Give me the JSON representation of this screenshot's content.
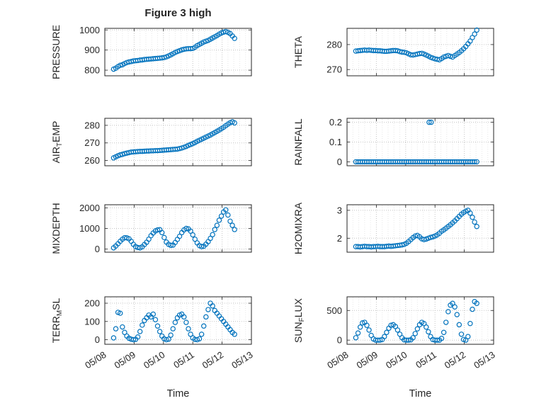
{
  "chart_data": {
    "type": "scatter",
    "title": "Figure 3 high",
    "xlabel": "Time",
    "xlim": [
      0,
      5
    ],
    "x_tick_values": [
      0,
      1,
      2,
      3,
      4,
      5
    ],
    "x_tick_labels": [
      "05/08",
      "05/09",
      "05/10",
      "05/11",
      "05/12",
      "05/13"
    ],
    "grid": "dotted",
    "marker": {
      "shape": "open-circle",
      "color": "#0072BD"
    },
    "shared_x": [
      0.3,
      0.375,
      0.45,
      0.525,
      0.6,
      0.675,
      0.75,
      0.825,
      0.9,
      0.975,
      1.05,
      1.125,
      1.2,
      1.275,
      1.35,
      1.425,
      1.5,
      1.575,
      1.65,
      1.725,
      1.8,
      1.875,
      1.95,
      2.025,
      2.1,
      2.175,
      2.25,
      2.325,
      2.4,
      2.475,
      2.55,
      2.625,
      2.7,
      2.775,
      2.85,
      2.925,
      3.0,
      3.075,
      3.15,
      3.225,
      3.3,
      3.375,
      3.45,
      3.525,
      3.6,
      3.675,
      3.75,
      3.825,
      3.9,
      3.975,
      4.05,
      4.125,
      4.2,
      4.275,
      4.35,
      4.425
    ],
    "subplots": [
      {
        "name": "pressure",
        "label": "PRESSURE",
        "row": 0,
        "col": 0,
        "ylim": [
          772,
          1008
        ],
        "yticks": [
          800,
          900,
          1000
        ],
        "y": [
          805,
          810,
          818,
          824,
          827,
          833,
          838,
          841,
          843,
          846,
          847,
          848,
          850,
          851,
          853,
          854,
          855,
          856,
          857,
          858,
          859,
          860,
          861,
          863,
          866,
          871,
          876,
          882,
          888,
          893,
          897,
          901,
          904,
          906,
          907,
          907,
          908,
          914,
          922,
          928,
          934,
          940,
          944,
          948,
          954,
          960,
          966,
          972,
          979,
          985,
          989,
          992,
          988,
          982,
          970,
          958
        ]
      },
      {
        "name": "theta",
        "label": "THETA",
        "row": 0,
        "col": 1,
        "ylim": [
          267.5,
          286.5
        ],
        "yticks": [
          270,
          280
        ],
        "y": [
          277.4,
          277.5,
          277.6,
          277.7,
          277.8,
          277.7,
          277.8,
          277.7,
          277.6,
          277.6,
          277.5,
          277.5,
          277.4,
          277.3,
          277.3,
          277.4,
          277.5,
          277.6,
          277.6,
          277.5,
          277.2,
          277.0,
          276.9,
          276.7,
          276.3,
          275.9,
          275.8,
          276.0,
          276.2,
          276.4,
          276.5,
          276.2,
          275.8,
          275.4,
          274.9,
          274.6,
          274.3,
          274.1,
          273.9,
          274.4,
          275.0,
          275.3,
          275.6,
          275.3,
          275.0,
          275.6,
          276.2,
          276.8,
          277.5,
          278.3,
          279.2,
          280.3,
          281.4,
          282.8,
          284.2,
          285.8
        ]
      },
      {
        "name": "airtemp",
        "label": "AIR_TEMP",
        "row": 1,
        "col": 0,
        "ylim": [
          257,
          284
        ],
        "yticks": [
          260,
          270,
          280
        ],
        "y": [
          261.5,
          262.1,
          262.7,
          263.2,
          263.5,
          263.9,
          264.2,
          264.5,
          264.8,
          264.9,
          265.0,
          265.1,
          265.2,
          265.2,
          265.3,
          265.4,
          265.4,
          265.5,
          265.5,
          265.6,
          265.6,
          265.7,
          265.8,
          265.9,
          266.0,
          266.1,
          266.2,
          266.3,
          266.4,
          266.5,
          266.8,
          267.1,
          267.5,
          268.0,
          268.6,
          269.1,
          269.6,
          270.2,
          270.9,
          271.5,
          272.1,
          272.7,
          273.3,
          273.9,
          274.5,
          275.2,
          275.9,
          276.6,
          277.3,
          278.1,
          278.9,
          279.8,
          280.7,
          281.5,
          282.0,
          281.4
        ]
      },
      {
        "name": "rainfall",
        "label": "RAINFALL",
        "row": 1,
        "col": 1,
        "ylim": [
          -0.02,
          0.22
        ],
        "yticks": [
          0,
          0.1,
          0.2
        ],
        "y": [
          0,
          0,
          0,
          0,
          0,
          0,
          0,
          0,
          0,
          0,
          0,
          0,
          0,
          0,
          0,
          0,
          0,
          0,
          0,
          0,
          0,
          0,
          0,
          0,
          0,
          0,
          0,
          0,
          0,
          0,
          0,
          0,
          0,
          0,
          0,
          0,
          0,
          0,
          0,
          0,
          0,
          0,
          0,
          0,
          0,
          0,
          0,
          0,
          0,
          0,
          0,
          0,
          0,
          0,
          0,
          0
        ],
        "extra_points": [
          {
            "x": 2.8,
            "y": 0.2
          },
          {
            "x": 2.87,
            "y": 0.2
          }
        ]
      },
      {
        "name": "mixdepth",
        "label": "MIXDEPTH",
        "row": 2,
        "col": 0,
        "ylim": [
          -150,
          2150
        ],
        "yticks": [
          0,
          1000,
          2000
        ],
        "y": [
          60,
          150,
          260,
          380,
          480,
          550,
          545,
          500,
          380,
          230,
          120,
          75,
          60,
          110,
          220,
          330,
          480,
          650,
          780,
          880,
          930,
          940,
          800,
          560,
          340,
          230,
          180,
          195,
          320,
          470,
          620,
          800,
          930,
          1000,
          980,
          870,
          690,
          480,
          300,
          170,
          120,
          140,
          240,
          360,
          520,
          700,
          950,
          1150,
          1400,
          1600,
          1800,
          1900,
          1650,
          1350,
          1150,
          950
        ]
      },
      {
        "name": "h2omixra",
        "label": "H2OMIXRA",
        "row": 2,
        "col": 1,
        "ylim": [
          1.5,
          3.2
        ],
        "yticks": [
          2,
          3
        ],
        "y": [
          1.7,
          1.7,
          1.69,
          1.7,
          1.71,
          1.7,
          1.7,
          1.69,
          1.7,
          1.7,
          1.71,
          1.7,
          1.7,
          1.7,
          1.71,
          1.72,
          1.71,
          1.72,
          1.73,
          1.74,
          1.75,
          1.76,
          1.78,
          1.82,
          1.88,
          1.95,
          2.02,
          2.08,
          2.1,
          2.05,
          1.98,
          1.95,
          1.97,
          2.0,
          2.03,
          2.05,
          2.08,
          2.12,
          2.18,
          2.25,
          2.3,
          2.36,
          2.42,
          2.48,
          2.55,
          2.62,
          2.7,
          2.78,
          2.86,
          2.92,
          2.97,
          3.0,
          2.9,
          2.75,
          2.58,
          2.42
        ]
      },
      {
        "name": "terrmsl",
        "label": "TERR_MSL",
        "row": 3,
        "col": 0,
        "ylim": [
          -25,
          235
        ],
        "yticks": [
          0,
          100,
          200
        ],
        "y": [
          10,
          60,
          150,
          145,
          70,
          40,
          20,
          8,
          3,
          0,
          2,
          15,
          45,
          80,
          105,
          120,
          135,
          125,
          140,
          110,
          75,
          45,
          20,
          5,
          0,
          3,
          25,
          60,
          95,
          120,
          135,
          140,
          125,
          95,
          60,
          30,
          10,
          2,
          0,
          5,
          30,
          75,
          125,
          165,
          200,
          185,
          160,
          145,
          130,
          115,
          100,
          85,
          70,
          55,
          40,
          30
        ]
      },
      {
        "name": "sunflux",
        "label": "SUN_FLUX",
        "row": 3,
        "col": 1,
        "ylim": [
          -70,
          730
        ],
        "yticks": [
          0,
          500
        ],
        "y": [
          40,
          120,
          220,
          290,
          300,
          250,
          170,
          80,
          20,
          0,
          0,
          0,
          10,
          60,
          130,
          200,
          250,
          260,
          230,
          170,
          100,
          40,
          5,
          0,
          0,
          5,
          40,
          110,
          190,
          260,
          300,
          280,
          220,
          140,
          60,
          10,
          0,
          0,
          0,
          30,
          130,
          300,
          480,
          590,
          620,
          560,
          430,
          260,
          100,
          10,
          0,
          60,
          280,
          520,
          650,
          620
        ]
      }
    ]
  }
}
